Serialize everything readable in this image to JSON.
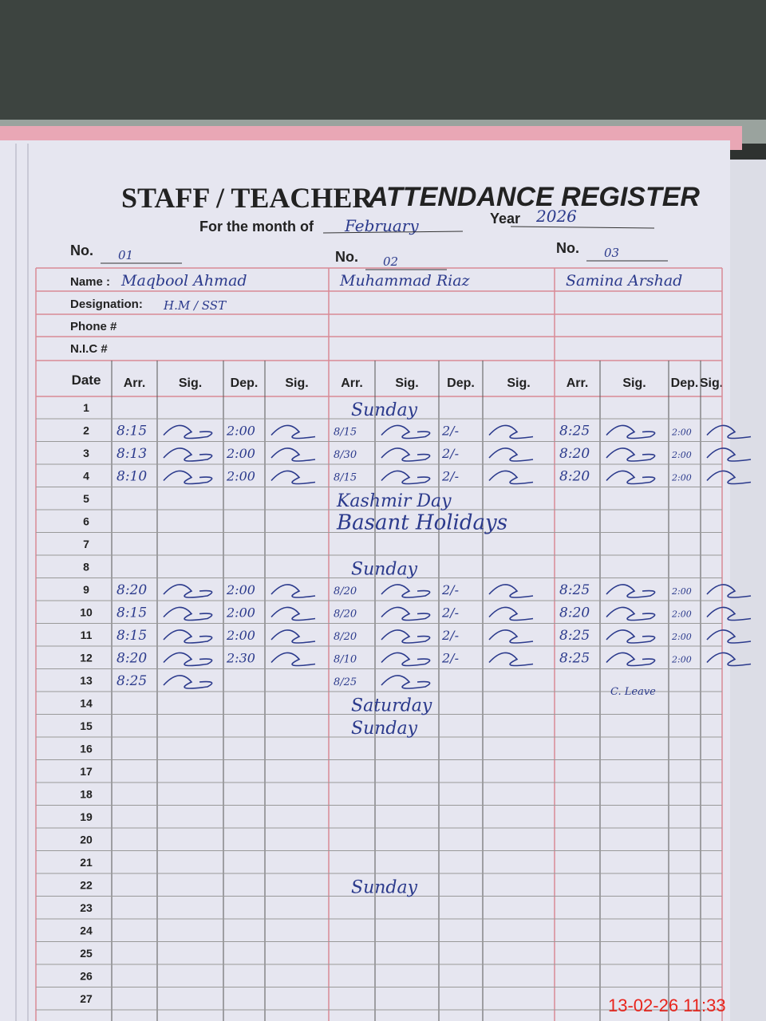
{
  "header": {
    "title_left": "STAFF / TEACHER",
    "title_right": "ATTENDANCE REGISTER",
    "month_label": "For the month of",
    "month": "February",
    "year_label": "Year",
    "year": "2026"
  },
  "labels": {
    "no": "No.",
    "name": "Name :",
    "designation": "Designation:",
    "phone": "Phone #",
    "nic": "N.I.C #"
  },
  "columns": {
    "date": "Date",
    "arr": "Arr.",
    "sig": "Sig.",
    "dep": "Dep."
  },
  "staff": [
    {
      "no": "01",
      "name": "Maqbool Ahmad",
      "designation": "H.M / SST"
    },
    {
      "no": "02",
      "name": "Muhammad Riaz"
    },
    {
      "no": "03",
      "name": "Samina Arshad"
    }
  ],
  "rows": [
    {
      "date": 1,
      "note": "Sunday"
    },
    {
      "date": 2,
      "times": [
        [
          "8:15",
          "2:00"
        ],
        [
          "8/15",
          "2/-"
        ],
        [
          "8:25",
          "2:00"
        ]
      ]
    },
    {
      "date": 3,
      "times": [
        [
          "8:13",
          "2:00"
        ],
        [
          "8/30",
          "2/-"
        ],
        [
          "8:20",
          "2:00"
        ]
      ]
    },
    {
      "date": 4,
      "times": [
        [
          "8:10",
          "2:00"
        ],
        [
          "8/15",
          "2/-"
        ],
        [
          "8:20",
          "2:00"
        ]
      ]
    },
    {
      "date": 5,
      "note": "Kashmir Day"
    },
    {
      "date": 6,
      "note": "Basant Holidays"
    },
    {
      "date": 7
    },
    {
      "date": 8,
      "note": "Sunday"
    },
    {
      "date": 9,
      "times": [
        [
          "8:20",
          "2:00"
        ],
        [
          "8/20",
          "2/-"
        ],
        [
          "8:25",
          "2:00"
        ]
      ]
    },
    {
      "date": 10,
      "times": [
        [
          "8:15",
          "2:00"
        ],
        [
          "8/20",
          "2/-"
        ],
        [
          "8:20",
          "2:00"
        ]
      ]
    },
    {
      "date": 11,
      "times": [
        [
          "8:15",
          "2:00"
        ],
        [
          "8/20",
          "2/-"
        ],
        [
          "8:25",
          "2:00"
        ]
      ]
    },
    {
      "date": 12,
      "times": [
        [
          "8:20",
          "2:30"
        ],
        [
          "8/10",
          "2/-"
        ],
        [
          "8:25",
          "2:00"
        ]
      ]
    },
    {
      "date": 13,
      "times": [
        [
          "8:25"
        ],
        [
          "8/25"
        ]
      ],
      "leave": "C. Leave"
    },
    {
      "date": 14,
      "note": "Saturday"
    },
    {
      "date": 15,
      "note": "Sunday"
    },
    {
      "date": 16
    },
    {
      "date": 17
    },
    {
      "date": 18
    },
    {
      "date": 19
    },
    {
      "date": 20
    },
    {
      "date": 21
    },
    {
      "date": 22,
      "note": "Sunday"
    },
    {
      "date": 23
    },
    {
      "date": 24
    },
    {
      "date": 25
    },
    {
      "date": 26
    },
    {
      "date": 27
    }
  ],
  "timestamp": "13-02-26 11:33"
}
